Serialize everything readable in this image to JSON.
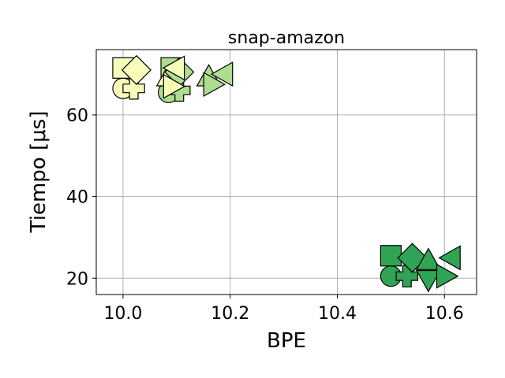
{
  "chart_data": {
    "type": "scatter",
    "title": "snap-amazon",
    "xlabel": "BPE",
    "ylabel": "Tiempo [μs]",
    "xlim": [
      9.95,
      10.66
    ],
    "ylim": [
      16,
      76
    ],
    "xticks": [
      10.0,
      10.2,
      10.4,
      10.6
    ],
    "xtick_labels": [
      "10.0",
      "10.2",
      "10.4",
      "10.6"
    ],
    "yticks": [
      20,
      40,
      60
    ],
    "ytick_labels": [
      "20",
      "40",
      "60"
    ],
    "grid": true,
    "legend": "none",
    "colors": {
      "pale": "#f7fcb9",
      "light_green": "#addd8e",
      "dark_green": "#31a354"
    },
    "points": [
      {
        "x": 10.0,
        "y": 66.5,
        "marker": "circle",
        "color": "pale"
      },
      {
        "x": 10.0,
        "y": 71.5,
        "marker": "square",
        "color": "pale"
      },
      {
        "x": 10.02,
        "y": 66.5,
        "marker": "plus",
        "color": "pale"
      },
      {
        "x": 10.025,
        "y": 71.0,
        "marker": "diamond",
        "color": "pale"
      },
      {
        "x": 10.085,
        "y": 65.5,
        "marker": "circle",
        "color": "light_green"
      },
      {
        "x": 10.09,
        "y": 71.5,
        "marker": "square",
        "color": "light_green"
      },
      {
        "x": 10.085,
        "y": 69.0,
        "marker": "triangle-up",
        "color": "pale"
      },
      {
        "x": 10.105,
        "y": 66.0,
        "marker": "plus",
        "color": "light_green"
      },
      {
        "x": 10.105,
        "y": 70.5,
        "marker": "diamond",
        "color": "light_green"
      },
      {
        "x": 10.09,
        "y": 67.0,
        "marker": "triangle-right",
        "color": "pale"
      },
      {
        "x": 10.1,
        "y": 71.5,
        "marker": "triangle-left",
        "color": "pale"
      },
      {
        "x": 10.16,
        "y": 69.0,
        "marker": "triangle-up",
        "color": "light_green"
      },
      {
        "x": 10.165,
        "y": 67.5,
        "marker": "triangle-right",
        "color": "light_green"
      },
      {
        "x": 10.19,
        "y": 70.0,
        "marker": "triangle-left",
        "color": "light_green"
      },
      {
        "x": 10.5,
        "y": 20.5,
        "marker": "circle",
        "color": "dark_green"
      },
      {
        "x": 10.5,
        "y": 25.5,
        "marker": "square",
        "color": "dark_green"
      },
      {
        "x": 10.53,
        "y": 20.5,
        "marker": "plus",
        "color": "dark_green"
      },
      {
        "x": 10.54,
        "y": 25.0,
        "marker": "diamond",
        "color": "dark_green"
      },
      {
        "x": 10.57,
        "y": 20.0,
        "marker": "triangle-down",
        "color": "dark_green"
      },
      {
        "x": 10.57,
        "y": 24.0,
        "marker": "triangle-up",
        "color": "dark_green"
      },
      {
        "x": 10.6,
        "y": 20.5,
        "marker": "triangle-right",
        "color": "dark_green"
      },
      {
        "x": 10.615,
        "y": 25.0,
        "marker": "triangle-left",
        "color": "dark_green"
      }
    ]
  }
}
